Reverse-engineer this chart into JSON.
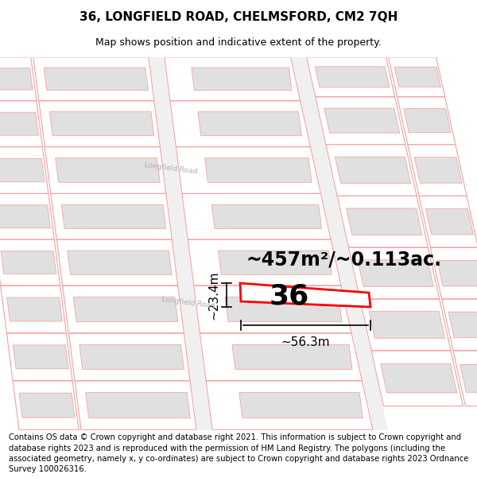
{
  "title": "36, LONGFIELD ROAD, CHELMSFORD, CM2 7QH",
  "subtitle": "Map shows position and indicative extent of the property.",
  "footer": "Contains OS data © Crown copyright and database right 2021. This information is subject to Crown copyright and database rights 2023 and is reproduced with the permission of HM Land Registry. The polygons (including the associated geometry, namely x, y co-ordinates) are subject to Crown copyright and database rights 2023 Ordnance Survey 100026316.",
  "area_label": "~457m²/~0.113ac.",
  "width_label": "~56.3m",
  "height_label": "~23.4m",
  "number_label": "36",
  "bg_color": "#ffffff",
  "map_bg": "#ffffff",
  "plot_outline": "#f5a0a0",
  "plot_fill": "#f8f8f8",
  "building_fill": "#e0e0e0",
  "highlight_color": "#ff0000",
  "road_label_color": "#b0b0b0",
  "title_fontsize": 11,
  "subtitle_fontsize": 9,
  "footer_fontsize": 7.2,
  "area_fontsize": 17,
  "number_fontsize": 26,
  "dim_fontsize": 11
}
